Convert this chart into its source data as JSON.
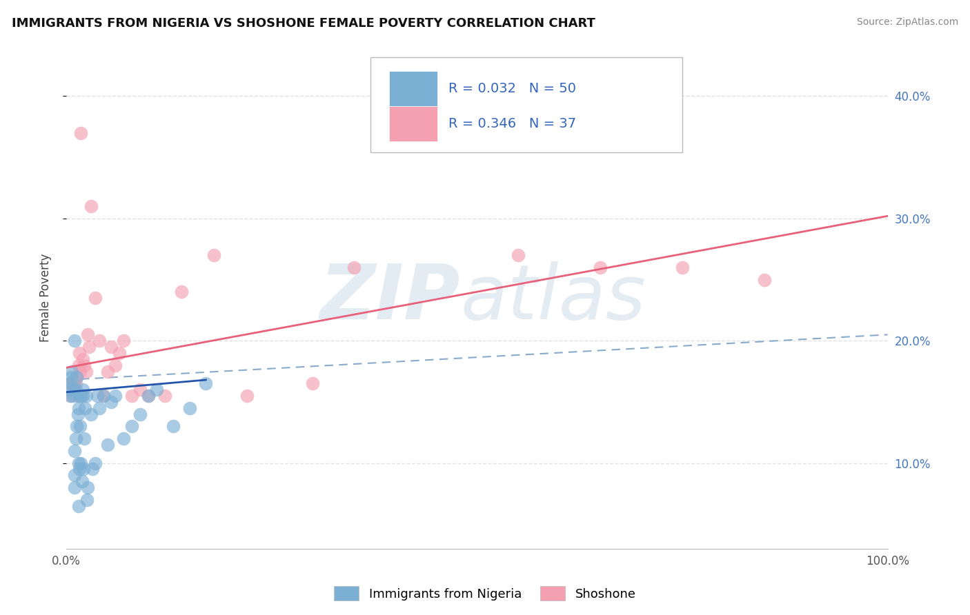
{
  "title": "IMMIGRANTS FROM NIGERIA VS SHOSHONE FEMALE POVERTY CORRELATION CHART",
  "source": "Source: ZipAtlas.com",
  "ylabel": "Female Poverty",
  "xlim": [
    0,
    1
  ],
  "ylim": [
    0.03,
    0.44
  ],
  "yticks_right": [
    0.1,
    0.2,
    0.3,
    0.4
  ],
  "ytick_labels_right": [
    "10.0%",
    "20.0%",
    "30.0%",
    "40.0%"
  ],
  "legend_label1": "Immigrants from Nigeria",
  "legend_label2": "Shoshone",
  "R1": 0.032,
  "N1": 50,
  "R2": 0.346,
  "N2": 37,
  "color_blue": "#7BAFD4",
  "color_pink": "#F4A0B0",
  "color_blue_line": "#2255AA",
  "color_pink_line": "#E8607A",
  "color_dashed": "#88AACC",
  "blue_scatter_x": [
    0.003,
    0.004,
    0.005,
    0.006,
    0.007,
    0.008,
    0.009,
    0.01,
    0.01,
    0.01,
    0.01,
    0.012,
    0.012,
    0.013,
    0.013,
    0.014,
    0.015,
    0.015,
    0.015,
    0.016,
    0.016,
    0.017,
    0.018,
    0.018,
    0.019,
    0.02,
    0.02,
    0.021,
    0.022,
    0.023,
    0.024,
    0.025,
    0.026,
    0.03,
    0.032,
    0.035,
    0.038,
    0.04,
    0.045,
    0.05,
    0.055,
    0.06,
    0.07,
    0.08,
    0.09,
    0.1,
    0.11,
    0.13,
    0.15,
    0.17
  ],
  "blue_scatter_y": [
    0.16,
    0.165,
    0.155,
    0.17,
    0.175,
    0.155,
    0.16,
    0.08,
    0.09,
    0.11,
    0.2,
    0.12,
    0.16,
    0.13,
    0.17,
    0.14,
    0.065,
    0.1,
    0.145,
    0.095,
    0.155,
    0.13,
    0.1,
    0.155,
    0.085,
    0.155,
    0.16,
    0.095,
    0.12,
    0.145,
    0.155,
    0.07,
    0.08,
    0.14,
    0.095,
    0.1,
    0.155,
    0.145,
    0.155,
    0.115,
    0.15,
    0.155,
    0.12,
    0.13,
    0.14,
    0.155,
    0.16,
    0.13,
    0.145,
    0.165
  ],
  "pink_scatter_x": [
    0.005,
    0.007,
    0.009,
    0.012,
    0.013,
    0.014,
    0.015,
    0.016,
    0.017,
    0.018,
    0.02,
    0.022,
    0.024,
    0.026,
    0.028,
    0.03,
    0.035,
    0.04,
    0.045,
    0.05,
    0.055,
    0.06,
    0.065,
    0.07,
    0.08,
    0.09,
    0.1,
    0.12,
    0.14,
    0.18,
    0.22,
    0.3,
    0.35,
    0.55,
    0.65,
    0.75,
    0.85
  ],
  "pink_scatter_y": [
    0.155,
    0.165,
    0.165,
    0.165,
    0.17,
    0.155,
    0.18,
    0.19,
    0.175,
    0.37,
    0.185,
    0.18,
    0.175,
    0.205,
    0.195,
    0.31,
    0.235,
    0.2,
    0.155,
    0.175,
    0.195,
    0.18,
    0.19,
    0.2,
    0.155,
    0.16,
    0.155,
    0.155,
    0.24,
    0.27,
    0.155,
    0.165,
    0.26,
    0.27,
    0.26,
    0.26,
    0.25
  ],
  "blue_line_x": [
    0.0,
    0.17
  ],
  "blue_line_y": [
    0.158,
    0.168
  ],
  "pink_line_x": [
    0.0,
    1.0
  ],
  "pink_line_y": [
    0.178,
    0.302
  ],
  "dashed_line_x": [
    0.0,
    1.0
  ],
  "dashed_line_y": [
    0.168,
    0.205
  ],
  "background_color": "#FFFFFF",
  "grid_color": "#DDDDDD",
  "watermark_color": "#C8D8E8"
}
